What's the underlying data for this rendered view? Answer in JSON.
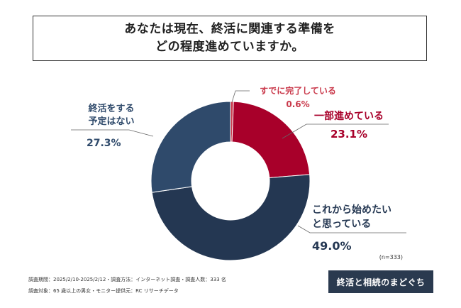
{
  "title": {
    "line1": "あなたは現在、終活に関連する準備を",
    "line2": "どの程度進めていますか。"
  },
  "chart_data": {
    "type": "pie",
    "style": "donut",
    "categories": [
      "すでに完了している",
      "一部進めている",
      "これから始めたいと思っている",
      "終活をする予定はない"
    ],
    "label_lines": [
      [
        "すでに完了している"
      ],
      [
        "一部進めている"
      ],
      [
        "これから始めたい",
        "と思っている"
      ],
      [
        "終活をする",
        "予定はない"
      ]
    ],
    "values": [
      0.6,
      23.1,
      49.0,
      27.3
    ],
    "value_labels": [
      "0.6%",
      "23.1%",
      "49.0%",
      "27.3%"
    ],
    "colors": [
      "#c9384a",
      "#a8002a",
      "#243752",
      "#2f4a6b"
    ],
    "label_colors": [
      "#c9384a",
      "#a8002a",
      "#243752",
      "#2f4a6b"
    ],
    "sample_note": "(n=333)"
  },
  "footnotes": {
    "line1": "調査期間：2025/2/10-2025/2/12・調査方法：インターネット調査・調査人数：333 名",
    "line2": "調査対象：65 歳以上の男女・モニター提供元：RC リサーチデータ"
  },
  "brand": {
    "text": "終活と相続のまどぐち"
  }
}
